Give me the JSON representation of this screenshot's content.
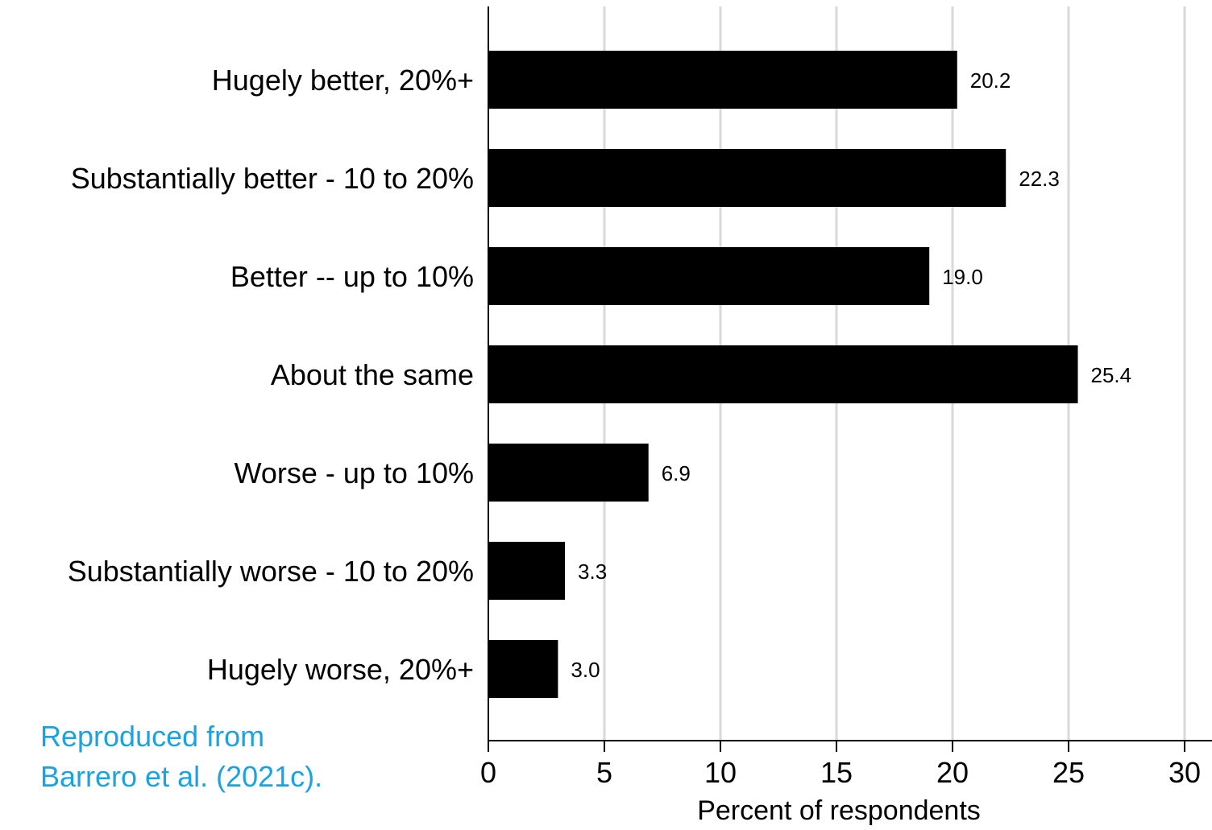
{
  "chart_data": {
    "type": "bar",
    "orientation": "horizontal",
    "categories": [
      "Hugely better, 20%+",
      "Substantially better - 10 to 20%",
      "Better -- up to 10%",
      "About the same",
      "Worse - up to 10%",
      "Substantially worse - 10 to 20%",
      "Hugely worse, 20%+"
    ],
    "values": [
      20.2,
      22.3,
      19.0,
      25.4,
      6.9,
      3.3,
      3.0
    ],
    "value_labels": [
      "20.2",
      "22.3",
      "19.0",
      "25.4",
      "6.9",
      "3.3",
      "3.0"
    ],
    "title": "",
    "xlabel": "Percent of respondents",
    "ylabel": "",
    "xlim": [
      0,
      30
    ],
    "xticks": [
      0,
      5,
      10,
      15,
      20,
      25,
      30
    ],
    "grid": "vertical",
    "bar_color": "#000000",
    "grid_color": "#d9d9d9"
  },
  "credit": {
    "line1": "Reproduced from",
    "line2": "Barrero et al. (2021c).",
    "color": "#1aa3e0"
  }
}
